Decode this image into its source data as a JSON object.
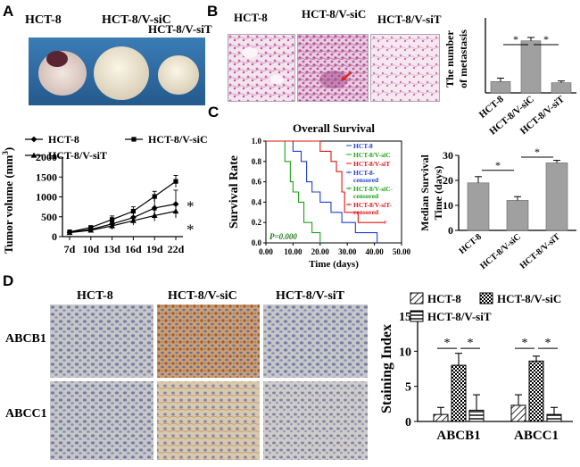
{
  "panels": {
    "A": "A",
    "B": "B",
    "C": "C",
    "D": "D"
  },
  "panel_a": {
    "photo_labels": [
      "HCT-8",
      "HCT-8/V-siC",
      "HCT-8/V-siT"
    ]
  },
  "panel_b": {
    "image_labels": [
      "HCT-8",
      "HCT-8/V-siC",
      "HCT-8/V-siT"
    ]
  },
  "panel_d": {
    "column_labels": [
      "HCT-8",
      "HCT-8/V-siC",
      "HCT-8/V-siT"
    ],
    "row_labels": [
      "ABCB1",
      "ABCC1"
    ]
  },
  "colors": {
    "photo_bg": "#2f6ea6",
    "he_stain": "#c76aa8",
    "ihc_bg": "#c9c5c4",
    "brown_stain": "#b5723d",
    "bar_fill": "#a0a0a0",
    "km_blue": "#1f3fd6",
    "km_red": "#e01515",
    "km_green": "#18a418"
  },
  "chart_data": [
    {
      "id": "metastasis",
      "type": "bar",
      "categories": [
        "HCT-8",
        "HCT-8/V-siC",
        "HCT-8/V-siT"
      ],
      "values": [
        2.0,
        9.2,
        1.8
      ],
      "errors": [
        0.6,
        0.6,
        0.3
      ],
      "ylabel_lines": [
        "The number",
        "of metastasis"
      ],
      "ylim": [
        0,
        12
      ],
      "yticks": [],
      "significance": [
        "*",
        "*"
      ]
    },
    {
      "id": "tumor-volume",
      "type": "line",
      "x": [
        "7d",
        "10d",
        "13d",
        "16d",
        "19d",
        "22d"
      ],
      "series": [
        {
          "name": "HCT-8",
          "values": [
            110,
            180,
            320,
            480,
            720,
            820
          ],
          "errors": [
            20,
            40,
            130,
            150,
            280,
            350
          ]
        },
        {
          "name": "HCT-8/V-siC",
          "values": [
            120,
            230,
            430,
            640,
            1010,
            1390
          ],
          "errors": [
            20,
            40,
            90,
            110,
            130,
            150
          ]
        },
        {
          "name": "HCT-8/V-siT",
          "values": [
            100,
            160,
            270,
            400,
            530,
            640
          ],
          "errors": [
            20,
            40,
            90,
            110,
            140,
            150
          ]
        }
      ],
      "ylabel": "Tumor volume (mm",
      "ylabel_sup": "3",
      "ylabel_close": ")",
      "ylim": [
        0,
        2000
      ],
      "yticks": [
        0,
        500,
        1000,
        1500,
        2000
      ],
      "significance": [
        "*",
        "*"
      ]
    },
    {
      "id": "overall-survival",
      "type": "line",
      "title": "Overall Survival",
      "xlabel": "Time (days)",
      "ylabel": "Survival Rate",
      "xlim": [
        0,
        50
      ],
      "ylim": [
        0,
        1.0
      ],
      "xticks": [
        "0.00",
        "10.00",
        "20.00",
        "30.00",
        "40.00",
        "50.00"
      ],
      "yticks": [
        "0.0",
        "0.2",
        "0.4",
        "0.6",
        "0.8",
        "1.0"
      ],
      "series": [
        {
          "name": "HCT-8",
          "steps": [
            [
              0,
              1.0
            ],
            [
              10,
              1.0
            ],
            [
              10,
              0.9
            ],
            [
              13,
              0.9
            ],
            [
              13,
              0.8
            ],
            [
              15,
              0.8
            ],
            [
              15,
              0.6
            ],
            [
              17,
              0.6
            ],
            [
              17,
              0.5
            ],
            [
              20,
              0.5
            ],
            [
              20,
              0.4
            ],
            [
              24,
              0.4
            ],
            [
              24,
              0.3
            ],
            [
              28,
              0.3
            ],
            [
              28,
              0.2
            ],
            [
              33,
              0.2
            ],
            [
              33,
              0.1
            ],
            [
              41,
              0.1
            ],
            [
              41,
              0.0
            ]
          ]
        },
        {
          "name": "HCT-8/V-siC",
          "steps": [
            [
              0,
              1.0
            ],
            [
              7,
              1.0
            ],
            [
              7,
              0.8
            ],
            [
              9,
              0.8
            ],
            [
              9,
              0.6
            ],
            [
              10,
              0.6
            ],
            [
              10,
              0.5
            ],
            [
              12,
              0.5
            ],
            [
              12,
              0.4
            ],
            [
              14,
              0.4
            ],
            [
              14,
              0.2
            ],
            [
              17,
              0.2
            ],
            [
              17,
              0.1
            ],
            [
              20,
              0.1
            ],
            [
              20,
              0.0
            ]
          ]
        },
        {
          "name": "HCT-8/V-siT",
          "steps": [
            [
              0,
              1.0
            ],
            [
              20,
              1.0
            ],
            [
              20,
              0.9
            ],
            [
              24,
              0.9
            ],
            [
              24,
              0.8
            ],
            [
              26,
              0.8
            ],
            [
              26,
              0.7
            ],
            [
              28,
              0.7
            ],
            [
              28,
              0.5
            ],
            [
              29,
              0.5
            ],
            [
              29,
              0.3
            ],
            [
              34,
              0.3
            ],
            [
              34,
              0.2
            ],
            [
              44,
              0.2
            ]
          ]
        }
      ],
      "legend": [
        "HCT-8",
        "HCT-8/V-siC",
        "HCT-8/V-siT",
        "HCT-8-censored",
        "HCT-8/V-siC-censored",
        "HCT-8/V-siT-censored"
      ],
      "legend_lines": [
        [
          "HCT-8"
        ],
        [
          "HCT-8/V-siC"
        ],
        [
          "HCT-8/V-siT"
        ],
        [
          "HCT-8-",
          "censored"
        ],
        [
          "HCT-8/V-siC-",
          "censored"
        ],
        [
          "HCT-8/V-siT-",
          "censored"
        ]
      ],
      "annotation": "P=0.000"
    },
    {
      "id": "median-survival",
      "type": "bar",
      "categories": [
        "HCT-8",
        "HCT-8/V-siC",
        "HCT-8/V-siT"
      ],
      "values": [
        19,
        12,
        27
      ],
      "errors": [
        2.5,
        1.5,
        1.0
      ],
      "ylabel_lines": [
        "Median Survival",
        "Time (days)"
      ],
      "ylim": [
        0,
        30
      ],
      "yticks": [
        0,
        10,
        20,
        30
      ],
      "significance": [
        "*",
        "*"
      ]
    },
    {
      "id": "staining-index",
      "type": "bar",
      "categories": [
        "ABCB1",
        "ABCC1"
      ],
      "series": [
        {
          "name": "HCT-8",
          "values": [
            1.0,
            2.3
          ],
          "errors": [
            1.0,
            1.5
          ]
        },
        {
          "name": "HCT-8/V-siC",
          "values": [
            8.0,
            8.6
          ],
          "errors": [
            1.7,
            0.7
          ]
        },
        {
          "name": "HCT-8/V-siT",
          "values": [
            1.6,
            1.0
          ],
          "errors": [
            2.2,
            1.0
          ]
        }
      ],
      "ylabel": "Staining Index",
      "ylim": [
        0,
        15
      ],
      "yticks": [
        0,
        5,
        10,
        15
      ],
      "significance": [
        "*",
        "*",
        "*",
        "*"
      ]
    }
  ]
}
